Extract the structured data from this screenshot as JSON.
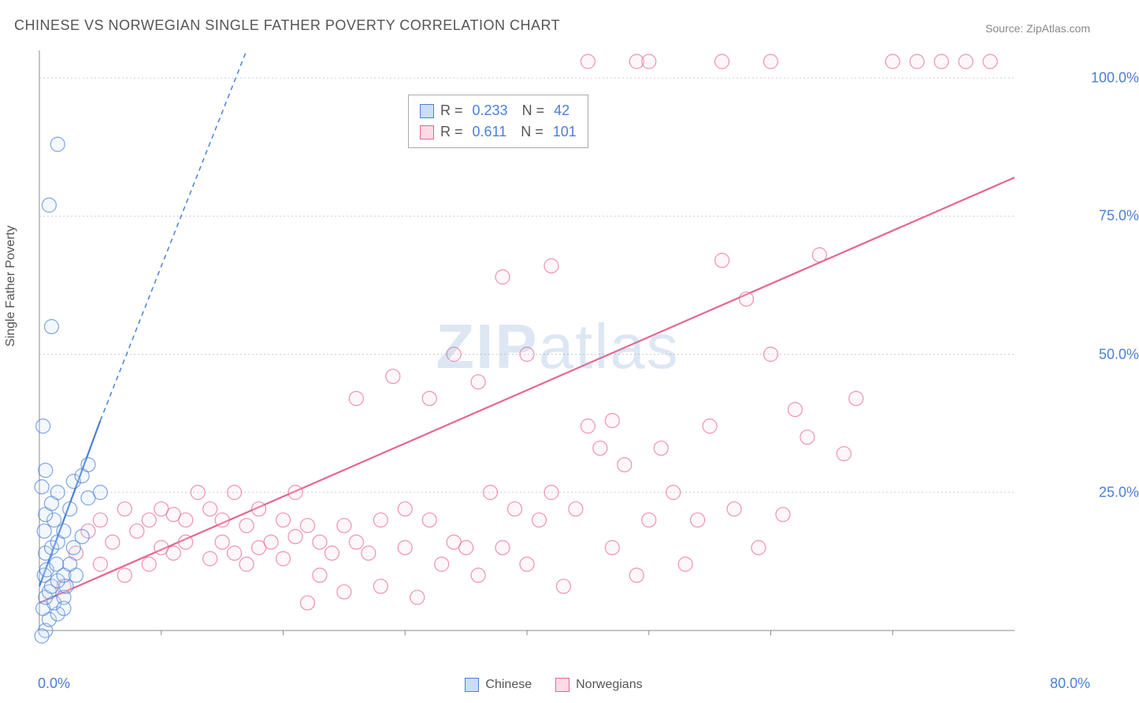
{
  "title": "CHINESE VS NORWEGIAN SINGLE FATHER POVERTY CORRELATION CHART",
  "source_label": "Source: ZipAtlas.com",
  "watermark_text_bold": "ZIP",
  "watermark_text_rest": "atlas",
  "y_axis_title": "Single Father Poverty",
  "chart": {
    "type": "scatter",
    "background_color": "#ffffff",
    "plot_border_color": "#888888",
    "grid_color": "#cccccc",
    "grid_dash": "2,3",
    "xlim": [
      0,
      80
    ],
    "ylim": [
      0,
      105
    ],
    "xtick_major": [
      0,
      80
    ],
    "xtick_minor_step": 10,
    "ytick_labels": [
      "25.0%",
      "50.0%",
      "75.0%",
      "100.0%"
    ],
    "ytick_values": [
      25,
      50,
      75,
      100
    ],
    "xtick_labels": [
      "0.0%",
      "80.0%"
    ],
    "marker_radius": 9,
    "marker_stroke_width": 1.2,
    "marker_fill_opacity": 0.22,
    "trend_solid_width": 2.2,
    "trend_dash_width": 1.5,
    "trend_dash": "6,5"
  },
  "legend_top": {
    "rows": [
      {
        "swatch_fill": "#c9def7",
        "swatch_stroke": "#4a7fd8",
        "r_label": "R =",
        "r_value": "0.233",
        "n_label": "N =",
        "n_value": "42"
      },
      {
        "swatch_fill": "#fcdbe4",
        "swatch_stroke": "#e8658f",
        "r_label": "R =",
        "r_value": "0.611",
        "n_label": "N =",
        "n_value": "101"
      }
    ]
  },
  "legend_bottom": {
    "items": [
      {
        "swatch_fill": "#c9def7",
        "swatch_stroke": "#4a7fd8",
        "label": "Chinese"
      },
      {
        "swatch_fill": "#fcdbe4",
        "swatch_stroke": "#e8658f",
        "label": "Norwegians"
      }
    ]
  },
  "series": {
    "chinese": {
      "color_stroke": "#4a7fd8",
      "color_fill": "#c9def7",
      "trend_solid": {
        "x1": 0,
        "y1": 8,
        "x2": 5,
        "y2": 38
      },
      "trend_dash": {
        "x1": 5,
        "y1": 38,
        "x2": 17,
        "y2": 105
      },
      "points": [
        [
          0.5,
          0
        ],
        [
          0.8,
          2
        ],
        [
          1.5,
          3
        ],
        [
          0.3,
          4
        ],
        [
          1.2,
          5
        ],
        [
          0.5,
          6
        ],
        [
          2.0,
          6
        ],
        [
          0.8,
          7
        ],
        [
          1.0,
          8
        ],
        [
          2.2,
          8
        ],
        [
          1.5,
          9
        ],
        [
          0.4,
          10
        ],
        [
          2.0,
          10
        ],
        [
          3.0,
          10
        ],
        [
          0.6,
          11
        ],
        [
          1.4,
          12
        ],
        [
          2.5,
          12
        ],
        [
          0.5,
          14
        ],
        [
          1.0,
          15
        ],
        [
          2.8,
          15
        ],
        [
          1.5,
          16
        ],
        [
          3.5,
          17
        ],
        [
          0.4,
          18
        ],
        [
          2.0,
          18
        ],
        [
          1.2,
          20
        ],
        [
          0.5,
          21
        ],
        [
          2.5,
          22
        ],
        [
          1.0,
          23
        ],
        [
          4.0,
          24
        ],
        [
          1.5,
          25
        ],
        [
          0.2,
          26
        ],
        [
          5.0,
          25
        ],
        [
          2.8,
          27
        ],
        [
          3.5,
          28
        ],
        [
          0.5,
          29
        ],
        [
          4.0,
          30
        ],
        [
          0.3,
          37
        ],
        [
          1.0,
          55
        ],
        [
          0.8,
          77
        ],
        [
          1.5,
          88
        ],
        [
          0.2,
          -1
        ],
        [
          2.0,
          4
        ]
      ]
    },
    "norwegians": {
      "color_stroke": "#e8658f",
      "color_fill": "#fcdbe4",
      "trend_solid": {
        "x1": 0,
        "y1": 5,
        "x2": 80,
        "y2": 82
      },
      "points": [
        [
          2,
          8
        ],
        [
          3,
          14
        ],
        [
          4,
          18
        ],
        [
          5,
          12
        ],
        [
          5,
          20
        ],
        [
          6,
          16
        ],
        [
          7,
          10
        ],
        [
          7,
          22
        ],
        [
          8,
          18
        ],
        [
          9,
          12
        ],
        [
          9,
          20
        ],
        [
          10,
          15
        ],
        [
          10,
          22
        ],
        [
          11,
          14
        ],
        [
          11,
          21
        ],
        [
          12,
          16
        ],
        [
          12,
          20
        ],
        [
          13,
          25
        ],
        [
          14,
          13
        ],
        [
          14,
          22
        ],
        [
          15,
          16
        ],
        [
          15,
          20
        ],
        [
          16,
          14
        ],
        [
          16,
          25
        ],
        [
          17,
          12
        ],
        [
          17,
          19
        ],
        [
          18,
          15
        ],
        [
          18,
          22
        ],
        [
          19,
          16
        ],
        [
          20,
          13
        ],
        [
          20,
          20
        ],
        [
          21,
          17
        ],
        [
          21,
          25
        ],
        [
          22,
          5
        ],
        [
          22,
          19
        ],
        [
          23,
          16
        ],
        [
          23,
          10
        ],
        [
          24,
          14
        ],
        [
          25,
          19
        ],
        [
          25,
          7
        ],
        [
          26,
          16
        ],
        [
          26,
          42
        ],
        [
          27,
          14
        ],
        [
          28,
          20
        ],
        [
          28,
          8
        ],
        [
          29,
          46
        ],
        [
          30,
          15
        ],
        [
          30,
          22
        ],
        [
          31,
          6
        ],
        [
          32,
          20
        ],
        [
          32,
          42
        ],
        [
          33,
          12
        ],
        [
          34,
          16
        ],
        [
          34,
          50
        ],
        [
          35,
          15
        ],
        [
          36,
          10
        ],
        [
          36,
          45
        ],
        [
          37,
          25
        ],
        [
          38,
          15
        ],
        [
          38,
          64
        ],
        [
          39,
          22
        ],
        [
          40,
          12
        ],
        [
          40,
          50
        ],
        [
          41,
          20
        ],
        [
          42,
          66
        ],
        [
          42,
          25
        ],
        [
          43,
          8
        ],
        [
          44,
          22
        ],
        [
          45,
          37
        ],
        [
          45,
          103
        ],
        [
          46,
          33
        ],
        [
          47,
          15
        ],
        [
          47,
          38
        ],
        [
          48,
          30
        ],
        [
          49,
          10
        ],
        [
          49,
          103
        ],
        [
          50,
          20
        ],
        [
          50,
          103
        ],
        [
          51,
          33
        ],
        [
          52,
          25
        ],
        [
          53,
          12
        ],
        [
          54,
          20
        ],
        [
          55,
          37
        ],
        [
          56,
          67
        ],
        [
          56,
          103
        ],
        [
          57,
          22
        ],
        [
          58,
          60
        ],
        [
          59,
          15
        ],
        [
          60,
          50
        ],
        [
          60,
          103
        ],
        [
          61,
          21
        ],
        [
          62,
          40
        ],
        [
          63,
          35
        ],
        [
          64,
          68
        ],
        [
          66,
          32
        ],
        [
          67,
          42
        ],
        [
          70,
          103
        ],
        [
          72,
          103
        ],
        [
          74,
          103
        ],
        [
          76,
          103
        ],
        [
          78,
          103
        ]
      ]
    }
  }
}
